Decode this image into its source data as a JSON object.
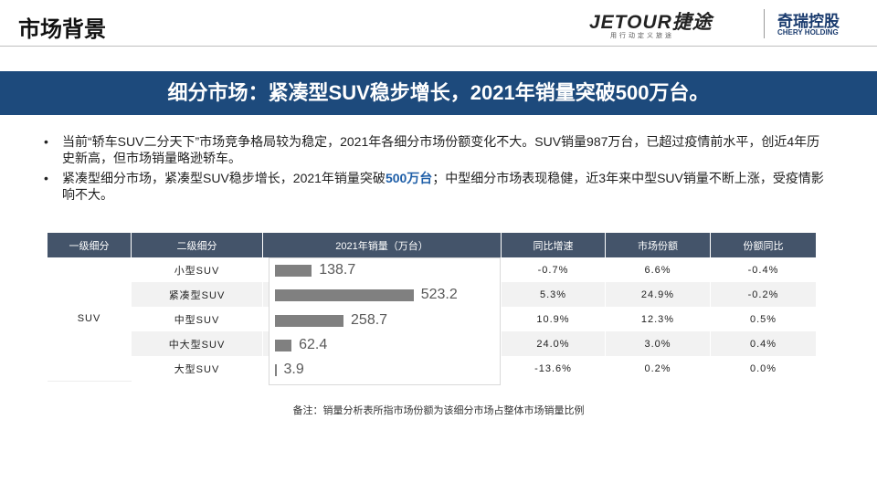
{
  "header": {
    "title": "市场背景",
    "jetour": "JETOUR捷途",
    "jetour_slogan": "用行动定义旅途",
    "chery": "奇瑞控股",
    "chery_en": "CHERY HOLDING"
  },
  "banner": "细分市场：紧凑型SUV稳步增长，2021年销量突破500万台。",
  "bullets": [
    [
      "当前“轿车SUV二分天下”市场竞争格局较为稳定，2021年各细分市场份额变化不大。SUV销量987万台，已超过疫情前水平，创近4年历史新高，但市场销量略逊轿车。"
    ],
    [
      "紧凑型细分市场，紧凑型SUV稳步增长，2021年销量突破",
      "500万台",
      "；中型细分市场表现稳健，近3年来中型SUV销量不断上涨，受疫情影响不大。"
    ]
  ],
  "table": {
    "columns": [
      "一级细分",
      "二级细分",
      "2021年销量（万台）",
      "同比增速",
      "市场份额",
      "份额同比"
    ],
    "group": "SUV",
    "rows": [
      {
        "segment": "小型SUV",
        "sales": 138.7,
        "yoy": "-0.7%",
        "share": "6.6%",
        "share_change": "-0.4%"
      },
      {
        "segment": "紧凑型SUV",
        "sales": 523.2,
        "yoy": "5.3%",
        "share": "24.9%",
        "share_change": "-0.2%"
      },
      {
        "segment": "中型SUV",
        "sales": 258.7,
        "yoy": "10.9%",
        "share": "12.3%",
        "share_change": "0.5%"
      },
      {
        "segment": "中大型SUV",
        "sales": 62.4,
        "yoy": "24.0%",
        "share": "3.0%",
        "share_change": "0.4%"
      },
      {
        "segment": "大型SUV",
        "sales": 3.9,
        "yoy": "-13.6%",
        "share": "0.2%",
        "share_change": "0.0%"
      }
    ]
  },
  "note": "备注：销量分析表所指市场份额为该细分市场占整体市场销量比例"
}
